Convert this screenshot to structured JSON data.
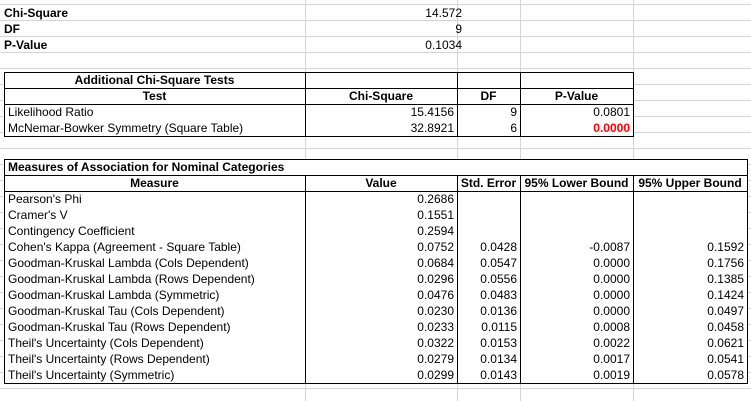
{
  "summary": {
    "chi_square_label": "Chi-Square",
    "chi_square_value": "14.572",
    "df_label": "DF",
    "df_value": "9",
    "p_value_label": "P-Value",
    "p_value_value": "0.1034"
  },
  "additional": {
    "title": "Additional Chi-Square Tests",
    "headers": [
      "Test",
      "Chi-Square",
      "DF",
      "P-Value"
    ],
    "rows": [
      {
        "test": "Likelihood Ratio",
        "chi": "15.4156",
        "df": "9",
        "p": "0.0801"
      },
      {
        "test": "McNemar-Bowker Symmetry (Square Table)",
        "chi": "32.8921",
        "df": "6",
        "p": "0.0000"
      }
    ],
    "highlight_color": "#ff0000"
  },
  "measures": {
    "title": "Measures of Association for Nominal Categories",
    "headers": [
      "Measure",
      "Value",
      "Std. Error",
      "95% Lower Bound",
      "95% Upper Bound"
    ],
    "rows": [
      {
        "m": "Pearson's Phi",
        "v": "0.2686",
        "se": "",
        "lo": "",
        "hi": ""
      },
      {
        "m": "Cramer's V",
        "v": "0.1551",
        "se": "",
        "lo": "",
        "hi": ""
      },
      {
        "m": "Contingency Coefficient",
        "v": "0.2594",
        "se": "",
        "lo": "",
        "hi": ""
      },
      {
        "m": "Cohen's Kappa (Agreement - Square Table)",
        "v": "0.0752",
        "se": "0.0428",
        "lo": "-0.0087",
        "hi": "0.1592"
      },
      {
        "m": "Goodman-Kruskal Lambda (Cols Dependent)",
        "v": "0.0684",
        "se": "0.0547",
        "lo": "0.0000",
        "hi": "0.1756"
      },
      {
        "m": "Goodman-Kruskal Lambda (Rows Dependent)",
        "v": "0.0296",
        "se": "0.0556",
        "lo": "0.0000",
        "hi": "0.1385"
      },
      {
        "m": "Goodman-Kruskal Lambda (Symmetric)",
        "v": "0.0476",
        "se": "0.0483",
        "lo": "0.0000",
        "hi": "0.1424"
      },
      {
        "m": "Goodman-Kruskal Tau (Cols Dependent)",
        "v": "0.0230",
        "se": "0.0136",
        "lo": "0.0000",
        "hi": "0.0497"
      },
      {
        "m": "Goodman-Kruskal Tau (Rows Dependent)",
        "v": "0.0233",
        "se": "0.0115",
        "lo": "0.0008",
        "hi": "0.0458"
      },
      {
        "m": "Theil's Uncertainty (Cols Dependent)",
        "v": "0.0322",
        "se": "0.0153",
        "lo": "0.0022",
        "hi": "0.0621"
      },
      {
        "m": "Theil's Uncertainty (Rows Dependent)",
        "v": "0.0279",
        "se": "0.0134",
        "lo": "0.0017",
        "hi": "0.0541"
      },
      {
        "m": "Theil's Uncertainty (Symmetric)",
        "v": "0.0299",
        "se": "0.0143",
        "lo": "0.0019",
        "hi": "0.0578"
      }
    ]
  }
}
